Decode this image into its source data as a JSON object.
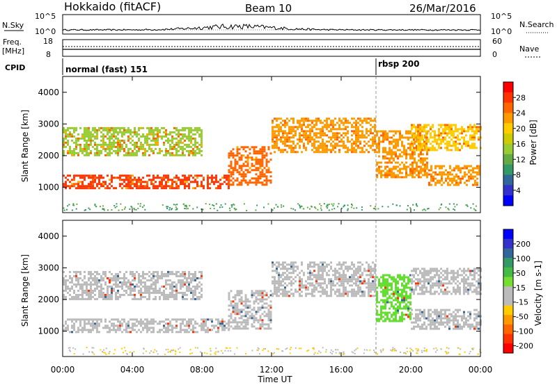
{
  "header": {
    "station": "Hokkaido (fitACF)",
    "beam": "Beam 10",
    "date": "26/Mar/2016"
  },
  "aux": {
    "nsky_label": "N.Sky",
    "nsky_ticks": [
      "10^5",
      "10^0"
    ],
    "nsearch_label": "N.Search",
    "nsearch_ticks": [
      "10^5",
      "10^0"
    ],
    "freq_label": "Freq.",
    "freq_unit": "[MHz]",
    "freq_ticks": [
      "18",
      "8"
    ],
    "nave_label": "Nave",
    "nave_ticks": [
      "60",
      "0"
    ],
    "cpid_label": "CPID",
    "cpid_segments": [
      {
        "name": "normal (fast) 151",
        "start_hour": 0
      },
      {
        "name": "rbsp 200",
        "start_hour": 18
      }
    ]
  },
  "chart_data": [
    {
      "type": "heatmap",
      "panel": "power",
      "ylabel": "Slant Range [km]",
      "xlabel": "",
      "xlim": [
        0,
        24
      ],
      "ylim": [
        200,
        4500
      ],
      "yticks": [
        "1000",
        "2000",
        "3000",
        "4000"
      ],
      "colorbar": {
        "label": "Power [dB]",
        "ticks": [
          "28",
          "24",
          "20",
          "16",
          "12",
          "8",
          "4"
        ],
        "colors": [
          "#ff0000",
          "#ff3300",
          "#ff6600",
          "#ff9900",
          "#ffcc00",
          "#cccc00",
          "#99cc33",
          "#66aa44",
          "#339966",
          "#336699",
          "#3333cc",
          "#0000ff"
        ]
      },
      "echo_bands": [
        {
          "start_hour": 0,
          "end_hour": 9.5,
          "range_low_km": 950,
          "range_high_km": 1400,
          "power_db": 28
        },
        {
          "start_hour": 9.5,
          "end_hour": 12,
          "range_low_km": 1100,
          "range_high_km": 2300,
          "power_db": 26
        },
        {
          "start_hour": 12,
          "end_hour": 18,
          "range_low_km": 2100,
          "range_high_km": 3200,
          "power_db": 24
        },
        {
          "start_hour": 18,
          "end_hour": 21,
          "range_low_km": 1300,
          "range_high_km": 2800,
          "power_db": 22
        },
        {
          "start_hour": 21,
          "end_hour": 24,
          "range_low_km": 1100,
          "range_high_km": 1700,
          "power_db": 22
        },
        {
          "start_hour": 0,
          "end_hour": 8,
          "range_low_km": 2000,
          "range_high_km": 2900,
          "power_db": 14
        },
        {
          "start_hour": 20,
          "end_hour": 24,
          "range_low_km": 2200,
          "range_high_km": 3000,
          "power_db": 20
        }
      ]
    },
    {
      "type": "heatmap",
      "panel": "velocity",
      "ylabel": "Slant Range [km]",
      "xlabel": "Time UT",
      "xlim": [
        0,
        24
      ],
      "ylim": [
        200,
        4500
      ],
      "yticks": [
        "1000",
        "2000",
        "3000",
        "4000"
      ],
      "xticks": [
        "00:00",
        "04:00",
        "08:00",
        "12:00",
        "16:00",
        "20:00",
        "00:00"
      ],
      "colorbar": {
        "label": "Velocity [m s-1]",
        "ticks": [
          "200",
          "100",
          "50",
          "15",
          "-15",
          "-50",
          "-100",
          "-200"
        ],
        "colors": [
          "#0000ff",
          "#3333cc",
          "#336699",
          "#339966",
          "#44bb44",
          "#77dd33",
          "#bbbbbb",
          "#bbbbbb",
          "#ffcc00",
          "#ff9900",
          "#ff6600",
          "#ff3300",
          "#ff0000"
        ]
      },
      "echo_bands": [
        {
          "start_hour": 0,
          "end_hour": 9.5,
          "range_low_km": 950,
          "range_high_km": 1400,
          "velocity": 0
        },
        {
          "start_hour": 9.5,
          "end_hour": 12,
          "range_low_km": 1100,
          "range_high_km": 2300,
          "velocity": 0
        },
        {
          "start_hour": 12,
          "end_hour": 18,
          "range_low_km": 2100,
          "range_high_km": 3200,
          "velocity": 0
        },
        {
          "start_hour": 18,
          "end_hour": 20,
          "range_low_km": 1300,
          "range_high_km": 2800,
          "velocity": 60
        },
        {
          "start_hour": 20,
          "end_hour": 24,
          "range_low_km": 1100,
          "range_high_km": 1700,
          "velocity": 0
        },
        {
          "start_hour": 0,
          "end_hour": 8,
          "range_low_km": 2000,
          "range_high_km": 2900,
          "velocity": 0
        },
        {
          "start_hour": 20,
          "end_hour": 24,
          "range_low_km": 2200,
          "range_high_km": 3000,
          "velocity": 0
        }
      ]
    }
  ]
}
